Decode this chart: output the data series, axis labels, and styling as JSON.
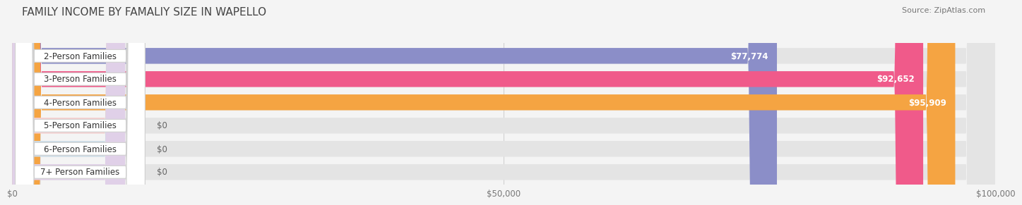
{
  "title": "FAMILY INCOME BY FAMALIY SIZE IN WAPELLO",
  "source": "Source: ZipAtlas.com",
  "categories": [
    "2-Person Families",
    "3-Person Families",
    "4-Person Families",
    "5-Person Families",
    "6-Person Families",
    "7+ Person Families"
  ],
  "values": [
    77774,
    92652,
    95909,
    0,
    0,
    0
  ],
  "bar_colors": [
    "#8b8ec8",
    "#f05a8a",
    "#f5a442",
    "#f0a0a0",
    "#9bb5d8",
    "#c0a8d0"
  ],
  "bar_colors_light": [
    "#d8d8ee",
    "#f8cedd",
    "#fde0c0",
    "#f8d0d0",
    "#ccdde8",
    "#e0d0e8"
  ],
  "value_labels": [
    "$77,774",
    "$92,652",
    "$95,909",
    "$0",
    "$0",
    "$0"
  ],
  "xlim": [
    0,
    100000
  ],
  "xticks": [
    0,
    50000,
    100000
  ],
  "xtick_labels": [
    "$0",
    "$50,000",
    "$100,000"
  ],
  "background_color": "#f4f4f4",
  "bar_bg_color": "#e8e8e8",
  "bar_height": 0.68,
  "title_fontsize": 11,
  "label_fontsize": 8.5,
  "value_fontsize": 8.5,
  "source_fontsize": 8
}
